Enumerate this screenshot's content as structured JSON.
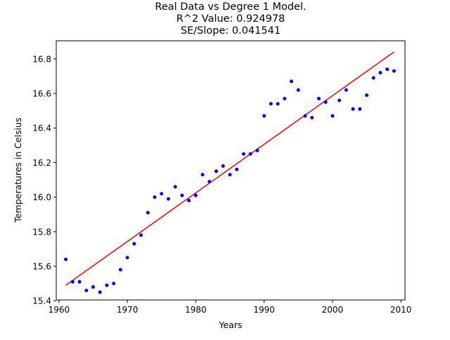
{
  "chart_data": {
    "type": "scatter",
    "title_lines": [
      "Real Data vs Degree 1 Model.",
      "R^2 Value: 0.924978",
      "SE/Slope: 0.041541"
    ],
    "xlabel": "Years",
    "ylabel": "Temperatures in Celsius",
    "xlim": [
      1959.6,
      2010.6
    ],
    "ylim": [
      15.405,
      16.905
    ],
    "x_ticks": [
      1960,
      1970,
      1980,
      1990,
      2000,
      2010
    ],
    "y_ticks": [
      15.4,
      15.6,
      15.8,
      16.0,
      16.2,
      16.4,
      16.6,
      16.8
    ],
    "x_tick_labels": [
      "1960",
      "1970",
      "1980",
      "1990",
      "2000",
      "2010"
    ],
    "y_tick_labels": [
      "15.4",
      "15.6",
      "15.8",
      "16.0",
      "16.2",
      "16.4",
      "16.6",
      "16.8"
    ],
    "grid": false,
    "legend": "none",
    "series": [
      {
        "kind": "scatter",
        "color": "#0000ff",
        "x": [
          1961,
          1962,
          1963,
          1964,
          1965,
          1966,
          1967,
          1968,
          1969,
          1970,
          1971,
          1972,
          1973,
          1974,
          1975,
          1976,
          1977,
          1978,
          1979,
          1980,
          1981,
          1982,
          1983,
          1984,
          1985,
          1986,
          1987,
          1988,
          1989,
          1990,
          1991,
          1992,
          1993,
          1994,
          1995,
          1996,
          1997,
          1998,
          1999,
          2000,
          2001,
          2002,
          2003,
          2004,
          2005,
          2006,
          2007,
          2008,
          2009
        ],
        "y": [
          15.64,
          15.51,
          15.51,
          15.46,
          15.48,
          15.45,
          15.49,
          15.5,
          15.58,
          15.65,
          15.73,
          15.78,
          15.91,
          16.0,
          16.02,
          15.99,
          16.06,
          16.01,
          15.98,
          16.01,
          16.13,
          16.09,
          16.15,
          16.18,
          16.13,
          16.16,
          16.25,
          16.25,
          16.27,
          16.47,
          16.54,
          16.54,
          16.57,
          16.67,
          16.62,
          16.47,
          16.46,
          16.57,
          16.55,
          16.47,
          16.56,
          16.62,
          16.51,
          16.51,
          16.59,
          16.69,
          16.72,
          16.74,
          16.73
        ]
      },
      {
        "kind": "line",
        "color": "#ff0000",
        "x": [
          1961,
          2009
        ],
        "y": [
          15.49,
          16.84
        ]
      }
    ]
  }
}
